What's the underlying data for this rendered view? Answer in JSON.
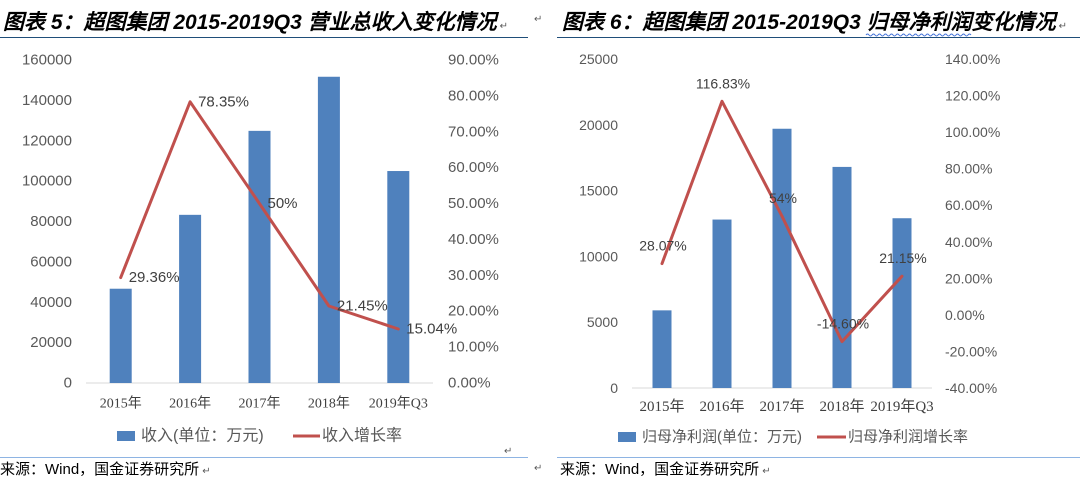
{
  "document": {
    "paragraph_mark": "↵"
  },
  "panels": [
    {
      "source": "来源：Wind，国金证券研究所"
    },
    {
      "source": "来源：Wind，国金证券研究所"
    }
  ],
  "chart_data": [
    {
      "type": "bar",
      "title": "图表 5：超图集团 2015-2019Q3 营业总收入变化情况",
      "categories": [
        "2015年",
        "2016年",
        "2017年",
        "2018年",
        "2019年Q3"
      ],
      "series": [
        {
          "name": "收入(单位：万元)",
          "type": "bar",
          "axis": "left",
          "color": "#4F81BD",
          "values": [
            46700,
            83300,
            124900,
            151700,
            105000
          ]
        },
        {
          "name": "收入增长率",
          "type": "line",
          "axis": "right",
          "color": "#C0504D",
          "values": [
            29.36,
            78.35,
            50,
            21.45,
            15.04
          ],
          "labels": [
            "29.36%",
            "78.35%",
            "50%",
            "21.45%",
            "15.04%"
          ]
        }
      ],
      "y_left": {
        "range": [
          0,
          160000
        ],
        "ticks": [
          "0",
          "20000",
          "40000",
          "60000",
          "80000",
          "100000",
          "120000",
          "140000",
          "160000"
        ]
      },
      "y_right": {
        "range": [
          0,
          90
        ],
        "ticks": [
          "0.00%",
          "10.00%",
          "20.00%",
          "30.00%",
          "40.00%",
          "50.00%",
          "60.00%",
          "70.00%",
          "80.00%",
          "90.00%"
        ]
      },
      "grid": false,
      "legend": "bottom"
    },
    {
      "type": "bar",
      "title": "图表 6：超图集团 2015-2019Q3 归母净利润变化情况",
      "categories": [
        "2015年",
        "2016年",
        "2017年",
        "2018年",
        "2019年Q3"
      ],
      "series": [
        {
          "name": "归母净利润(单位：万元)",
          "type": "bar",
          "axis": "left",
          "color": "#4F81BD",
          "values": [
            5900,
            12800,
            19700,
            16800,
            12900
          ]
        },
        {
          "name": "归母净利润增长率",
          "type": "line",
          "axis": "right",
          "color": "#C0504D",
          "values": [
            28.07,
            116.83,
            54,
            -14.6,
            21.15
          ],
          "labels": [
            "28.07%",
            "116.83%",
            "54%",
            "-14.60%",
            "21.15%"
          ]
        }
      ],
      "y_left": {
        "range": [
          0,
          25000
        ],
        "ticks": [
          "0",
          "5000",
          "10000",
          "15000",
          "20000",
          "25000"
        ]
      },
      "y_right": {
        "range": [
          -40,
          140
        ],
        "ticks": [
          "-40.00%",
          "-20.00%",
          "0.00%",
          "20.00%",
          "40.00%",
          "60.00%",
          "80.00%",
          "100.00%",
          "120.00%",
          "140.00%"
        ]
      },
      "grid": false,
      "legend": "bottom"
    }
  ]
}
